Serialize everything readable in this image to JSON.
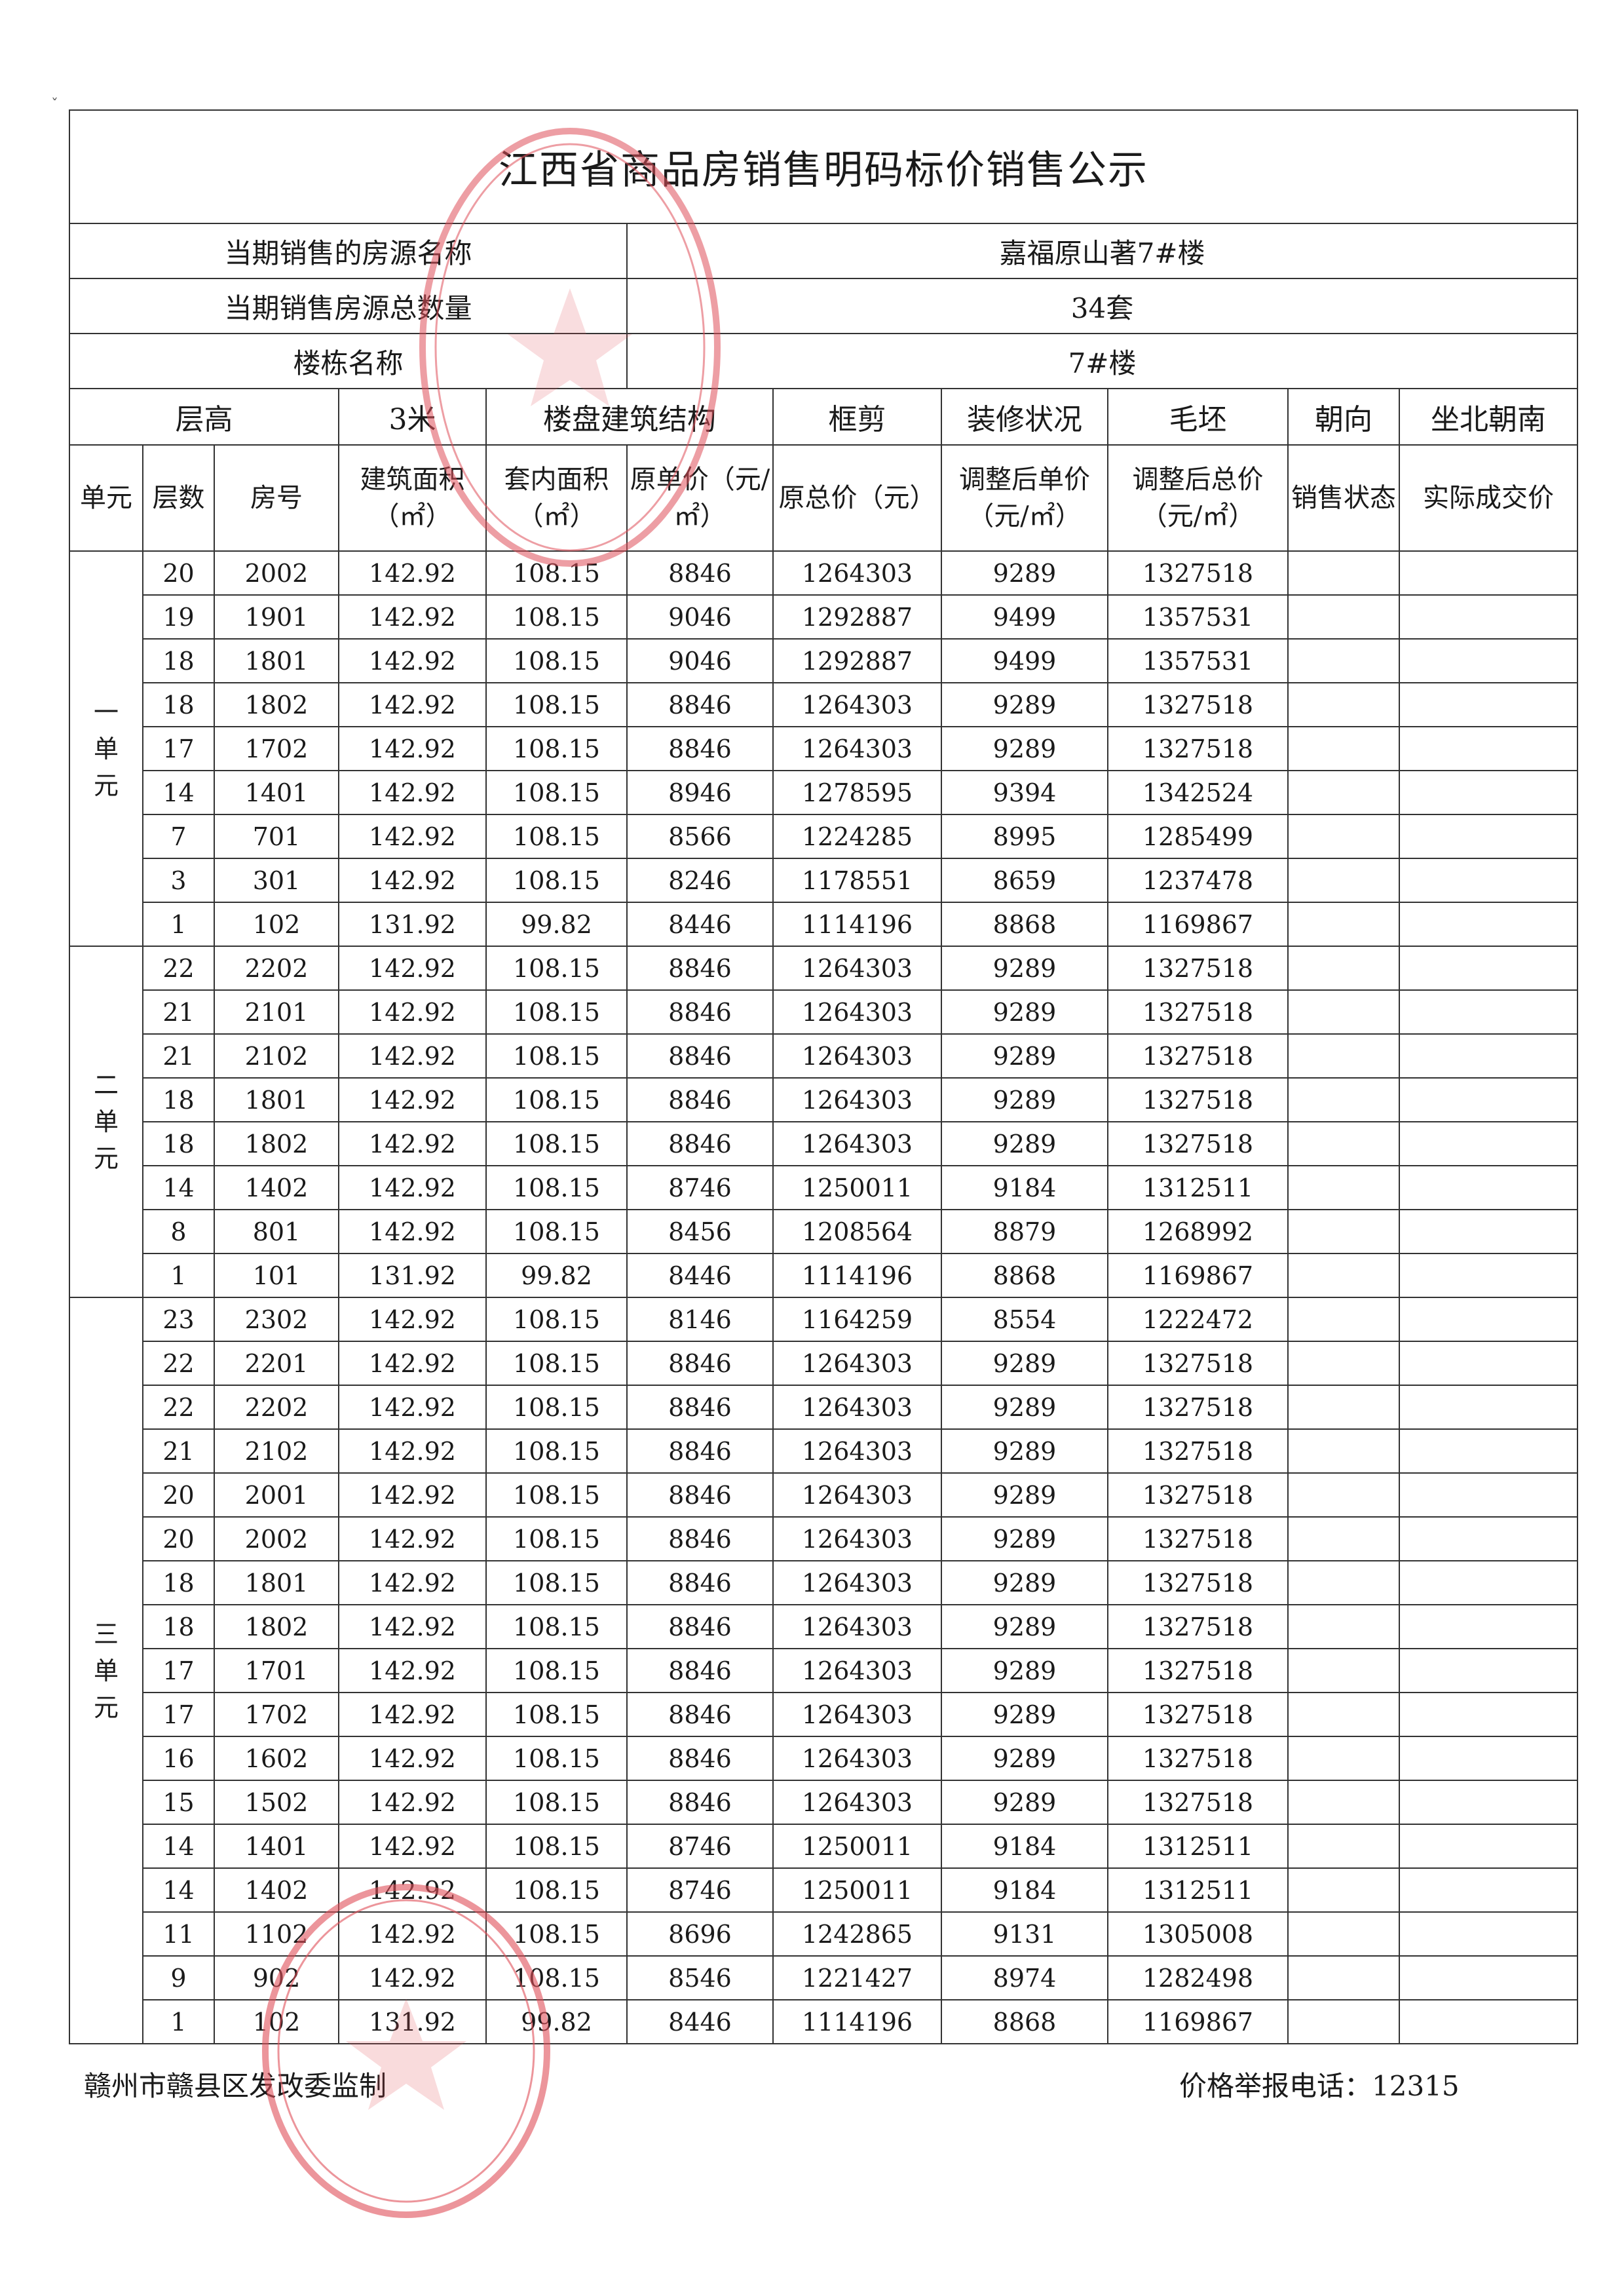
{
  "title": "江西省商品房销售明码标价销售公示",
  "info": [
    {
      "label": "当期销售的房源名称",
      "value": "嘉福原山著7#楼"
    },
    {
      "label": "当期销售房源总数量",
      "value": "34套"
    },
    {
      "label": "楼栋名称",
      "value": "7#楼"
    }
  ],
  "header": {
    "floor_height_label": "层高",
    "floor_height_value": "3米",
    "structure_label": "楼盘建筑结构",
    "structure_value": "框剪",
    "decoration_label": "装修状况",
    "decoration_value": "毛坯",
    "orientation_label": "朝向",
    "orientation_value": "坐北朝南"
  },
  "columns": [
    "单元",
    "层数",
    "房号",
    "建筑面积（㎡）",
    "套内面积（㎡）",
    "原单价（元/㎡）",
    "原总价（元）",
    "调整后单价（元/㎡）",
    "调整后总价（元/㎡）",
    "销售状态",
    "实际成交价"
  ],
  "units": [
    {
      "name": "一单元",
      "rows": [
        [
          "20",
          "2002",
          "142.92",
          "108.15",
          "8846",
          "1264303",
          "9289",
          "1327518",
          "",
          ""
        ],
        [
          "19",
          "1901",
          "142.92",
          "108.15",
          "9046",
          "1292887",
          "9499",
          "1357531",
          "",
          ""
        ],
        [
          "18",
          "1801",
          "142.92",
          "108.15",
          "9046",
          "1292887",
          "9499",
          "1357531",
          "",
          ""
        ],
        [
          "18",
          "1802",
          "142.92",
          "108.15",
          "8846",
          "1264303",
          "9289",
          "1327518",
          "",
          ""
        ],
        [
          "17",
          "1702",
          "142.92",
          "108.15",
          "8846",
          "1264303",
          "9289",
          "1327518",
          "",
          ""
        ],
        [
          "14",
          "1401",
          "142.92",
          "108.15",
          "8946",
          "1278595",
          "9394",
          "1342524",
          "",
          ""
        ],
        [
          "7",
          "701",
          "142.92",
          "108.15",
          "8566",
          "1224285",
          "8995",
          "1285499",
          "",
          ""
        ],
        [
          "3",
          "301",
          "142.92",
          "108.15",
          "8246",
          "1178551",
          "8659",
          "1237478",
          "",
          ""
        ],
        [
          "1",
          "102",
          "131.92",
          "99.82",
          "8446",
          "1114196",
          "8868",
          "1169867",
          "",
          ""
        ]
      ]
    },
    {
      "name": "二单元",
      "rows": [
        [
          "22",
          "2202",
          "142.92",
          "108.15",
          "8846",
          "1264303",
          "9289",
          "1327518",
          "",
          ""
        ],
        [
          "21",
          "2101",
          "142.92",
          "108.15",
          "8846",
          "1264303",
          "9289",
          "1327518",
          "",
          ""
        ],
        [
          "21",
          "2102",
          "142.92",
          "108.15",
          "8846",
          "1264303",
          "9289",
          "1327518",
          "",
          ""
        ],
        [
          "18",
          "1801",
          "142.92",
          "108.15",
          "8846",
          "1264303",
          "9289",
          "1327518",
          "",
          ""
        ],
        [
          "18",
          "1802",
          "142.92",
          "108.15",
          "8846",
          "1264303",
          "9289",
          "1327518",
          "",
          ""
        ],
        [
          "14",
          "1402",
          "142.92",
          "108.15",
          "8746",
          "1250011",
          "9184",
          "1312511",
          "",
          ""
        ],
        [
          "8",
          "801",
          "142.92",
          "108.15",
          "8456",
          "1208564",
          "8879",
          "1268992",
          "",
          ""
        ],
        [
          "1",
          "101",
          "131.92",
          "99.82",
          "8446",
          "1114196",
          "8868",
          "1169867",
          "",
          ""
        ]
      ]
    },
    {
      "name": "三单元",
      "rows": [
        [
          "23",
          "2302",
          "142.92",
          "108.15",
          "8146",
          "1164259",
          "8554",
          "1222472",
          "",
          ""
        ],
        [
          "22",
          "2201",
          "142.92",
          "108.15",
          "8846",
          "1264303",
          "9289",
          "1327518",
          "",
          ""
        ],
        [
          "22",
          "2202",
          "142.92",
          "108.15",
          "8846",
          "1264303",
          "9289",
          "1327518",
          "",
          ""
        ],
        [
          "21",
          "2102",
          "142.92",
          "108.15",
          "8846",
          "1264303",
          "9289",
          "1327518",
          "",
          ""
        ],
        [
          "20",
          "2001",
          "142.92",
          "108.15",
          "8846",
          "1264303",
          "9289",
          "1327518",
          "",
          ""
        ],
        [
          "20",
          "2002",
          "142.92",
          "108.15",
          "8846",
          "1264303",
          "9289",
          "1327518",
          "",
          ""
        ],
        [
          "18",
          "1801",
          "142.92",
          "108.15",
          "8846",
          "1264303",
          "9289",
          "1327518",
          "",
          ""
        ],
        [
          "18",
          "1802",
          "142.92",
          "108.15",
          "8846",
          "1264303",
          "9289",
          "1327518",
          "",
          ""
        ],
        [
          "17",
          "1701",
          "142.92",
          "108.15",
          "8846",
          "1264303",
          "9289",
          "1327518",
          "",
          ""
        ],
        [
          "17",
          "1702",
          "142.92",
          "108.15",
          "8846",
          "1264303",
          "9289",
          "1327518",
          "",
          ""
        ],
        [
          "16",
          "1602",
          "142.92",
          "108.15",
          "8846",
          "1264303",
          "9289",
          "1327518",
          "",
          ""
        ],
        [
          "15",
          "1502",
          "142.92",
          "108.15",
          "8846",
          "1264303",
          "9289",
          "1327518",
          "",
          ""
        ],
        [
          "14",
          "1401",
          "142.92",
          "108.15",
          "8746",
          "1250011",
          "9184",
          "1312511",
          "",
          ""
        ],
        [
          "14",
          "1402",
          "142.92",
          "108.15",
          "8746",
          "1250011",
          "9184",
          "1312511",
          "",
          ""
        ],
        [
          "11",
          "1102",
          "142.92",
          "108.15",
          "8696",
          "1242865",
          "9131",
          "1305008",
          "",
          ""
        ],
        [
          "9",
          "902",
          "142.92",
          "108.15",
          "8546",
          "1221427",
          "8974",
          "1282498",
          "",
          ""
        ],
        [
          "1",
          "102",
          "131.92",
          "99.82",
          "8446",
          "1114196",
          "8868",
          "1169867",
          "",
          ""
        ]
      ]
    }
  ],
  "footer": {
    "left": "赣州市赣县区发改委监制",
    "right": "价格举报电话：12315"
  },
  "colors": {
    "stamp": "#e0505a",
    "line": "#333333"
  }
}
